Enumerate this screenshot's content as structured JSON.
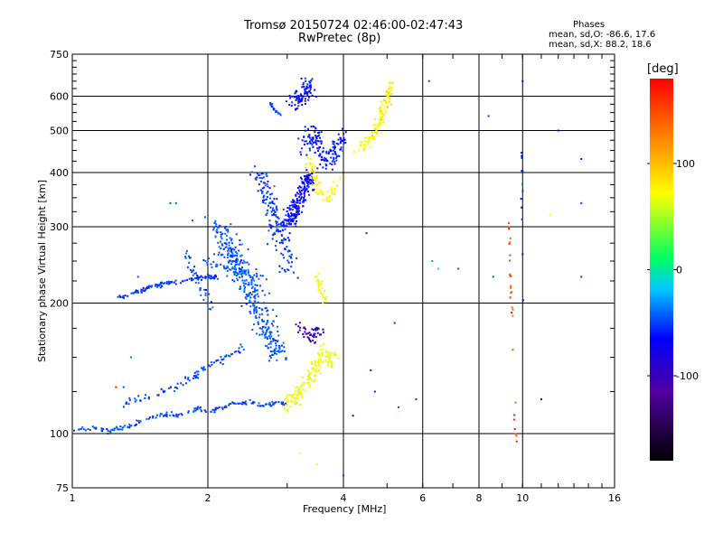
{
  "header": {
    "title_line1": "Tromsø 20150724 02:46:00-02:47:43",
    "title_line2": "RwPretec (8p)",
    "stats_heading": "Phases",
    "stats_o": "mean, sd,O: -86.6, 17.6",
    "stats_x": "mean, sd,X:  88.2, 18.6"
  },
  "colorbar": {
    "unit_label": "[deg]",
    "ticks": [
      {
        "value": 100,
        "label": "100"
      },
      {
        "value": 0,
        "label": "0"
      },
      {
        "value": -100,
        "label": "-100"
      }
    ],
    "range": [
      -180,
      180
    ]
  },
  "chart_data": {
    "type": "scatter",
    "title": "Tromsø 20150724 02:46:00-02:47:43 RwPretec (8p)",
    "xlabel": "Frequency [MHz]",
    "ylabel": "Stationary phase Virtual Height [km]",
    "xscale": "log",
    "yscale": "log",
    "xlim": [
      1,
      16
    ],
    "ylim": [
      75,
      750
    ],
    "grid": true,
    "x_ticks": [
      {
        "value": 1,
        "label": "1"
      },
      {
        "value": 2,
        "label": "2"
      },
      {
        "value": 4,
        "label": "4"
      },
      {
        "value": 6,
        "label": "6"
      },
      {
        "value": 8,
        "label": "8"
      },
      {
        "value": 10,
        "label": "10"
      },
      {
        "value": 16,
        "label": "16"
      }
    ],
    "y_ticks": [
      {
        "value": 75,
        "label": "75"
      },
      {
        "value": 100,
        "label": "100"
      },
      {
        "value": 200,
        "label": "200"
      },
      {
        "value": 300,
        "label": "300"
      },
      {
        "value": 400,
        "label": "400"
      },
      {
        "value": 500,
        "label": "500"
      },
      {
        "value": 600,
        "label": "600"
      },
      {
        "value": 750,
        "label": "750"
      }
    ],
    "color_by": "phase (deg)",
    "traces": [
      {
        "points": [
          [
            1.0,
            100
          ],
          [
            1.05,
            102
          ],
          [
            1.1,
            103
          ],
          [
            1.2,
            102
          ],
          [
            1.3,
            103
          ],
          [
            1.4,
            106
          ],
          [
            1.5,
            109
          ],
          [
            1.6,
            111
          ],
          [
            1.7,
            110
          ],
          [
            1.8,
            112
          ],
          [
            1.9,
            114
          ],
          [
            2.0,
            113
          ],
          [
            2.1,
            114
          ],
          [
            2.2,
            116
          ],
          [
            2.4,
            118
          ],
          [
            2.6,
            117
          ],
          [
            2.8,
            117
          ],
          [
            3.0,
            118
          ]
        ],
        "phase": -92,
        "spread": 2.0,
        "count": 180
      },
      {
        "points": [
          [
            1.3,
            117
          ],
          [
            1.4,
            120
          ],
          [
            1.5,
            122
          ],
          [
            1.6,
            126
          ],
          [
            1.7,
            128
          ],
          [
            1.8,
            133
          ],
          [
            1.9,
            138
          ],
          [
            2.0,
            143
          ],
          [
            2.2,
            150
          ],
          [
            2.4,
            158
          ]
        ],
        "phase": -95,
        "spread": 3.0,
        "count": 90
      },
      {
        "points": [
          [
            1.25,
            205
          ],
          [
            1.3,
            207
          ],
          [
            1.4,
            213
          ],
          [
            1.5,
            218
          ],
          [
            1.6,
            222
          ],
          [
            1.7,
            224
          ],
          [
            1.8,
            226
          ],
          [
            1.9,
            228
          ],
          [
            2.0,
            230
          ],
          [
            2.1,
            230
          ]
        ],
        "phase": -98,
        "spread": 2.0,
        "count": 110
      },
      {
        "points": [
          [
            1.8,
            260
          ],
          [
            1.85,
            240
          ],
          [
            1.9,
            225
          ],
          [
            1.95,
            212
          ],
          [
            2.0,
            202
          ],
          [
            2.05,
            192
          ]
        ],
        "phase": -90,
        "spread": 3.0,
        "count": 40
      },
      {
        "points": [
          [
            1.9,
            255
          ],
          [
            2.0,
            250
          ],
          [
            2.1,
            245
          ],
          [
            2.2,
            240
          ],
          [
            2.3,
            236
          ],
          [
            2.5,
            230
          ],
          [
            2.7,
            228
          ]
        ],
        "phase": -85,
        "spread": 3.0,
        "count": 50
      },
      {
        "points": [
          [
            2.1,
            300
          ],
          [
            2.2,
            275
          ],
          [
            2.3,
            250
          ],
          [
            2.4,
            230
          ],
          [
            2.5,
            210
          ],
          [
            2.6,
            190
          ],
          [
            2.7,
            175
          ],
          [
            2.8,
            160
          ],
          [
            2.9,
            150
          ]
        ],
        "phase": -88,
        "spread": 10.0,
        "count": 360
      },
      {
        "points": [
          [
            2.6,
            400
          ],
          [
            2.7,
            360
          ],
          [
            2.8,
            320
          ],
          [
            2.9,
            280
          ],
          [
            3.0,
            255
          ],
          [
            3.05,
            240
          ]
        ],
        "phase": -98,
        "spread": 8.0,
        "count": 160
      },
      {
        "points": [
          [
            2.75,
            580
          ],
          [
            2.8,
            560
          ],
          [
            2.85,
            550
          ],
          [
            2.9,
            545
          ]
        ],
        "phase": -90,
        "spread": 1.0,
        "count": 25
      },
      {
        "points": [
          [
            3.0,
            300
          ],
          [
            3.1,
            320
          ],
          [
            3.2,
            345
          ],
          [
            3.3,
            375
          ],
          [
            3.4,
            400
          ]
        ],
        "phase": -115,
        "spread": 6.0,
        "count": 200
      },
      {
        "points": [
          [
            3.1,
            580
          ],
          [
            3.2,
            600
          ],
          [
            3.3,
            610
          ],
          [
            3.35,
            640
          ]
        ],
        "phase": -112,
        "spread": 6.0,
        "count": 90
      },
      {
        "points": [
          [
            3.25,
            450
          ],
          [
            3.3,
            480
          ],
          [
            3.4,
            500
          ],
          [
            3.5,
            470
          ],
          [
            3.6,
            440
          ],
          [
            3.7,
            420
          ],
          [
            3.8,
            430
          ],
          [
            3.9,
            460
          ],
          [
            4.0,
            490
          ]
        ],
        "phase": -108,
        "spread": 6.0,
        "count": 150
      },
      {
        "points": [
          [
            3.35,
            430
          ],
          [
            3.4,
            400
          ],
          [
            3.45,
            385
          ],
          [
            3.5,
            370
          ],
          [
            3.6,
            350
          ],
          [
            3.7,
            345
          ],
          [
            3.8,
            365
          ],
          [
            3.9,
            390
          ]
        ],
        "phase": 100,
        "spread": 4.0,
        "count": 70
      },
      {
        "points": [
          [
            3.2,
            180
          ],
          [
            3.3,
            170
          ],
          [
            3.4,
            165
          ],
          [
            3.5,
            175
          ],
          [
            3.6,
            170
          ]
        ],
        "phase": -140,
        "spread": 5.0,
        "count": 50
      },
      {
        "points": [
          [
            3.0,
            115
          ],
          [
            3.1,
            120
          ],
          [
            3.2,
            125
          ],
          [
            3.3,
            130
          ],
          [
            3.4,
            135
          ],
          [
            3.5,
            145
          ],
          [
            3.6,
            155
          ],
          [
            3.7,
            145
          ],
          [
            3.8,
            150
          ],
          [
            3.9,
            155
          ]
        ],
        "phase": 90,
        "spread": 6.0,
        "count": 150
      },
      {
        "points": [
          [
            3.5,
            235
          ],
          [
            3.55,
            220
          ],
          [
            3.6,
            210
          ],
          [
            3.65,
            200
          ]
        ],
        "phase": 95,
        "spread": 3.0,
        "count": 30
      },
      {
        "points": [
          [
            4.3,
            450
          ],
          [
            4.4,
            460
          ],
          [
            4.5,
            470
          ],
          [
            4.6,
            480
          ],
          [
            4.7,
            495
          ],
          [
            4.8,
            520
          ],
          [
            4.9,
            560
          ],
          [
            5.0,
            600
          ],
          [
            5.1,
            640
          ]
        ],
        "phase": 100,
        "spread": 4.0,
        "count": 120
      },
      {
        "points": [
          [
            9.3,
            320
          ],
          [
            9.35,
            270
          ],
          [
            9.4,
            230
          ],
          [
            9.45,
            200
          ],
          [
            9.5,
            170
          ],
          [
            9.55,
            140
          ],
          [
            9.6,
            120
          ],
          [
            9.65,
            105
          ],
          [
            9.7,
            90
          ]
        ],
        "phase": 165,
        "spread": 1.0,
        "count": 30
      },
      {
        "points": [
          [
            9.9,
            490
          ],
          [
            10.0,
            400
          ],
          [
            9.95,
            300
          ],
          [
            10.0,
            200
          ]
        ],
        "phase": -110,
        "spread": 1.0,
        "count": 12
      }
    ],
    "isolated_points": [
      [
        6.2,
        650,
        -90
      ],
      [
        8.4,
        540,
        -100
      ],
      [
        10.0,
        650,
        -110
      ],
      [
        12.0,
        500,
        -120
      ],
      [
        13.5,
        430,
        -110
      ],
      [
        13.5,
        340,
        -100
      ],
      [
        13.5,
        230,
        -100
      ],
      [
        11.5,
        320,
        100
      ],
      [
        11.0,
        120,
        -120
      ],
      [
        4.5,
        290,
        -100
      ],
      [
        5.2,
        180,
        -100
      ],
      [
        6.3,
        250,
        -60
      ],
      [
        6.5,
        240,
        -30
      ],
      [
        7.2,
        240,
        -95
      ],
      [
        8.6,
        230,
        -90
      ],
      [
        5.8,
        120,
        -100
      ],
      [
        4.6,
        140,
        -110
      ],
      [
        4.7,
        125,
        -100
      ],
      [
        4.2,
        110,
        -120
      ],
      [
        5.3,
        115,
        -95
      ],
      [
        3.5,
        85,
        80
      ],
      [
        3.2,
        90,
        90
      ],
      [
        4.0,
        80,
        -95
      ],
      [
        1.4,
        230,
        -90
      ],
      [
        1.55,
        220,
        -100
      ],
      [
        1.65,
        340,
        -90
      ],
      [
        1.7,
        340,
        -90
      ],
      [
        1.85,
        310,
        -95
      ],
      [
        1.35,
        150,
        -80
      ],
      [
        1.3,
        128,
        -90
      ],
      [
        1.25,
        128,
        175
      ],
      [
        1.2,
        100,
        -100
      ]
    ]
  }
}
